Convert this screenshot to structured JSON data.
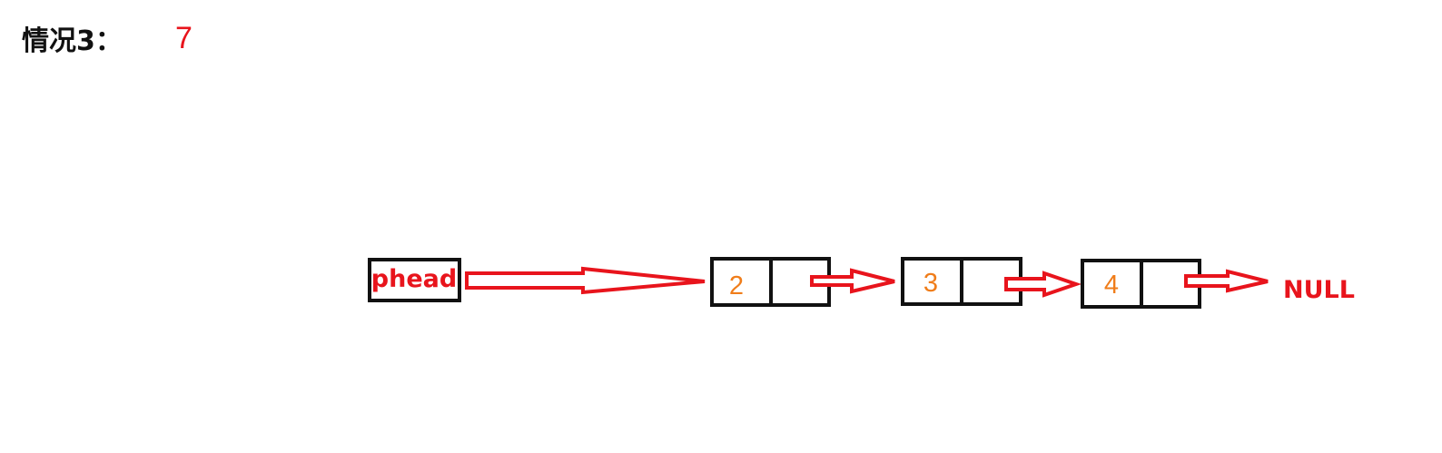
{
  "header": {
    "title": "情况3：",
    "value": "7"
  },
  "list": {
    "head_label": "phead",
    "nodes": [
      {
        "value": "2"
      },
      {
        "value": "3"
      },
      {
        "value": "4"
      }
    ],
    "terminal_label": "NULL"
  },
  "colors": {
    "arrow": "#e8141c",
    "node_value": "#f07d1a",
    "border": "#111111"
  }
}
